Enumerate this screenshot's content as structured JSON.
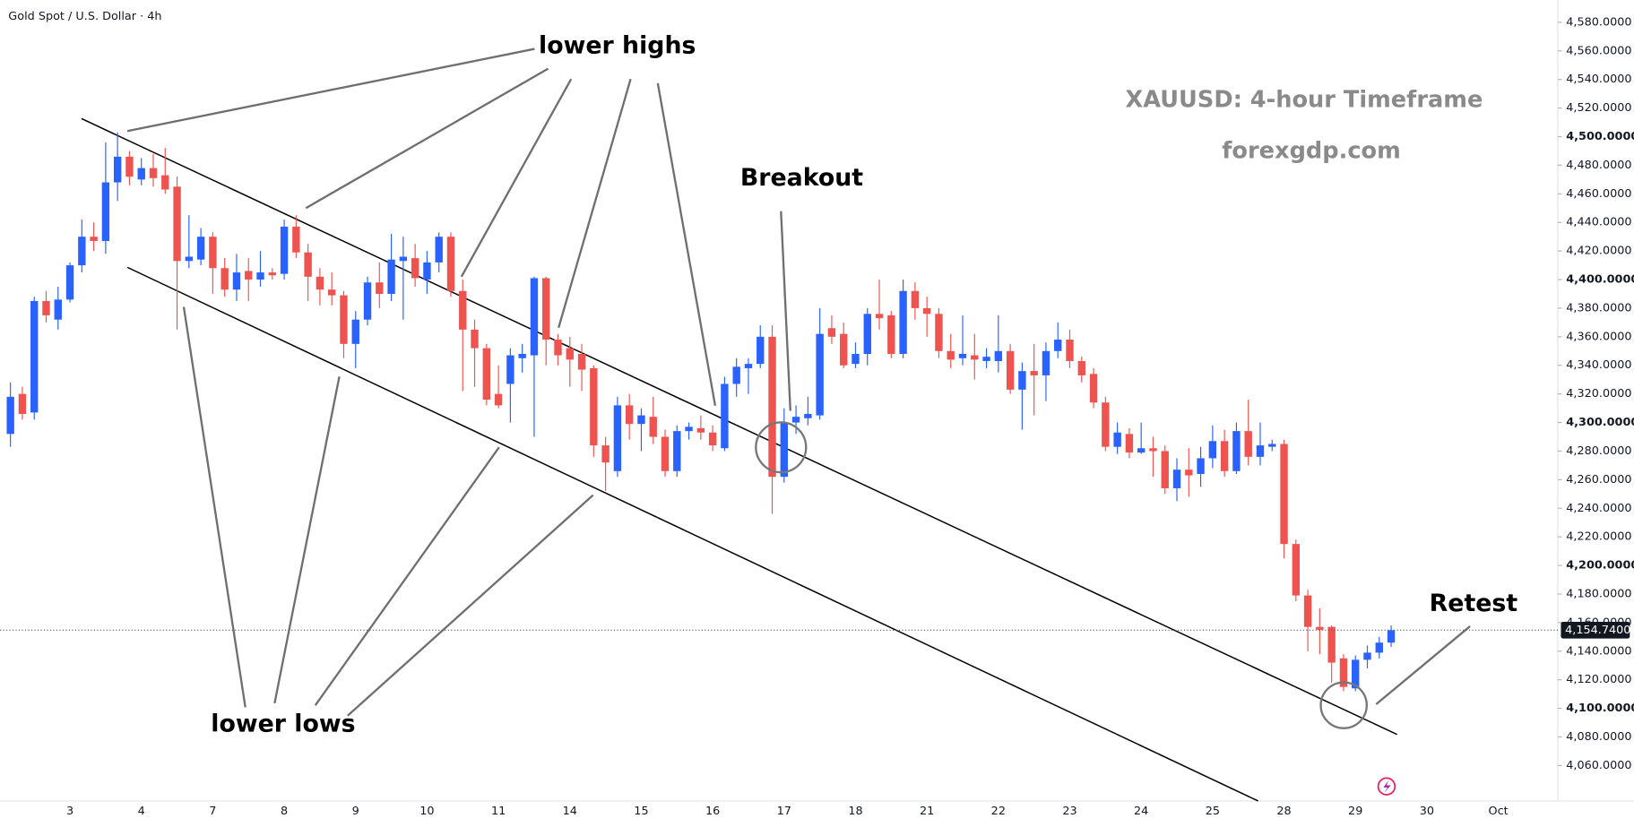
{
  "chart_data": {
    "type": "candlestick",
    "title": "Gold Spot / U.S. Dollar · 4h",
    "caption": "XAUUSD: 4-hour Timeframe",
    "source": "forexgdp.com",
    "annotations": [
      "lower highs",
      "lower lows",
      "Breakout",
      "Retest"
    ],
    "up_color": "#2962ff",
    "down_color": "#ef5350",
    "grid": false,
    "categories": [
      null,
      null,
      null,
      null,
      null,
      "3",
      null,
      null,
      null,
      null,
      null,
      "4",
      null,
      null,
      null,
      null,
      null,
      "7",
      null,
      null,
      null,
      null,
      null,
      "8",
      null,
      null,
      null,
      null,
      null,
      "9",
      null,
      null,
      null,
      null,
      null,
      "10",
      null,
      null,
      null,
      null,
      null,
      "11",
      null,
      null,
      null,
      null,
      null,
      "14",
      null,
      null,
      null,
      null,
      null,
      "15",
      null,
      null,
      null,
      null,
      null,
      "16",
      null,
      null,
      null,
      null,
      null,
      "17",
      null,
      null,
      null,
      null,
      null,
      "18",
      null,
      null,
      null,
      null,
      null,
      "21",
      null,
      null,
      null,
      null,
      null,
      "22",
      null,
      null,
      null,
      null,
      null,
      "23",
      null,
      null,
      null,
      null,
      null,
      "24",
      null,
      null,
      null,
      null,
      null,
      "25",
      null,
      null,
      null,
      null,
      null,
      "28",
      null,
      null,
      null,
      null,
      null,
      "29",
      null,
      null,
      null,
      null,
      null,
      "30",
      null,
      null,
      null,
      null,
      null,
      "Oct",
      null,
      null,
      null,
      null,
      null
    ],
    "open": [
      4292,
      4320,
      4307,
      4385,
      4372,
      4386,
      4410,
      4430,
      4427,
      4468,
      4486,
      4470,
      4478,
      4473,
      4465,
      4413,
      4414,
      4430,
      4408,
      4393,
      4406,
      4400,
      4405,
      4404,
      4437,
      4419,
      4402,
      4393,
      4389,
      4355,
      4372,
      4398,
      4390,
      4413,
      4415,
      4400,
      4412,
      4430,
      4392,
      4365,
      4352,
      4320,
      4327,
      4345,
      4347,
      4401,
      4358,
      4352,
      4348,
      4338,
      4284,
      4266,
      4312,
      4299,
      4304,
      4290,
      4266,
      4294,
      4296,
      4293,
      4282,
      4327,
      4338,
      4341,
      4360,
      4262,
      4300,
      4303,
      4305,
      4366,
      4362,
      4341,
      4348,
      4376,
      4375,
      4348,
      4392,
      4380,
      4376,
      4350,
      4345,
      4347,
      4343,
      4343,
      4350,
      4323,
      4336,
      4333,
      4350,
      4358,
      4343,
      4334,
      4314,
      4283,
      4292,
      4279,
      4282,
      4280,
      4254,
      4267,
      4264,
      4275,
      4287,
      4266,
      4294,
      4276,
      4283,
      4285,
      4215,
      4179,
      4157,
      4157,
      4135,
      4114,
      4134,
      4139,
      4146,
      null,
      null,
      null,
      null,
      null,
      null,
      null,
      null,
      null,
      null,
      null,
      null,
      null,
      null
    ],
    "high": [
      4328,
      4325,
      4388,
      4392,
      4395,
      4412,
      4442,
      4440,
      4496,
      4503,
      4490,
      4485,
      4488,
      4492,
      4472,
      4445,
      4436,
      4433,
      4415,
      4418,
      4415,
      4420,
      4408,
      4442,
      4445,
      4425,
      4408,
      4405,
      4392,
      4378,
      4402,
      4412,
      4432,
      4430,
      4425,
      4420,
      4433,
      4433,
      4400,
      4372,
      4355,
      4340,
      4352,
      4355,
      4402,
      4402,
      4362,
      4360,
      4355,
      4340,
      4290,
      4318,
      4320,
      4310,
      4318,
      4295,
      4298,
      4300,
      4305,
      4298,
      4332,
      4345,
      4345,
      4368,
      4368,
      4310,
      4312,
      4318,
      4380,
      4375,
      4370,
      4356,
      4380,
      4400,
      4378,
      4400,
      4398,
      4388,
      4380,
      4362,
      4375,
      4362,
      4352,
      4375,
      4355,
      4342,
      4355,
      4356,
      4370,
      4365,
      4346,
      4338,
      4318,
      4300,
      4296,
      4300,
      4290,
      4284,
      4275,
      4282,
      4283,
      4298,
      4295,
      4300,
      4316,
      4300,
      4288,
      4288,
      4218,
      4183,
      4170,
      4158,
      4138,
      4137,
      4144,
      4150,
      4158,
      null,
      null,
      null,
      null,
      null,
      null,
      null,
      null,
      null,
      null,
      null,
      null,
      null,
      null
    ],
    "low": [
      4283,
      4302,
      4302,
      4370,
      4365,
      4384,
      4405,
      4420,
      4418,
      4455,
      4466,
      4466,
      4465,
      4460,
      4365,
      4408,
      4410,
      4390,
      4388,
      4385,
      4385,
      4395,
      4400,
      4400,
      4415,
      4385,
      4382,
      4382,
      4345,
      4338,
      4368,
      4380,
      4385,
      4372,
      4395,
      4390,
      4405,
      4388,
      4322,
      4325,
      4312,
      4310,
      4300,
      4335,
      4290,
      4340,
      4340,
      4325,
      4322,
      4276,
      4252,
      4262,
      4288,
      4280,
      4285,
      4262,
      4262,
      4288,
      4288,
      4280,
      4280,
      4318,
      4320,
      4338,
      4236,
      4258,
      4292,
      4298,
      4302,
      4355,
      4338,
      4338,
      4340,
      4365,
      4345,
      4345,
      4372,
      4360,
      4345,
      4338,
      4340,
      4330,
      4338,
      4335,
      4320,
      4295,
      4305,
      4315,
      4345,
      4338,
      4328,
      4310,
      4280,
      4278,
      4275,
      4278,
      4262,
      4250,
      4245,
      4248,
      4255,
      4268,
      4262,
      4264,
      4270,
      4270,
      4280,
      4205,
      4175,
      4140,
      4138,
      4118,
      4112,
      4112,
      4128,
      4135,
      4143,
      null,
      null,
      null,
      null,
      null,
      null,
      null,
      null,
      null,
      null,
      null,
      null,
      null,
      null
    ],
    "close": [
      4318,
      4306,
      4385,
      4375,
      4386,
      4410,
      4430,
      4427,
      4468,
      4486,
      4472,
      4478,
      4471,
      4463,
      4413,
      4416,
      4430,
      4408,
      4393,
      4405,
      4400,
      4405,
      4403,
      4437,
      4419,
      4402,
      4393,
      4389,
      4355,
      4372,
      4398,
      4390,
      4414,
      4416,
      4401,
      4412,
      4430,
      4392,
      4365,
      4352,
      4316,
      4312,
      4347,
      4348,
      4401,
      4358,
      4347,
      4344,
      4337,
      4284,
      4272,
      4312,
      4299,
      4305,
      4290,
      4266,
      4294,
      4297,
      4293,
      4284,
      4327,
      4339,
      4341,
      4360,
      4262,
      4300,
      4304,
      4306,
      4362,
      4360,
      4340,
      4348,
      4376,
      4373,
      4348,
      4392,
      4380,
      4376,
      4350,
      4344,
      4348,
      4344,
      4346,
      4350,
      4323,
      4336,
      4333,
      4350,
      4358,
      4343,
      4333,
      4314,
      4283,
      4293,
      4279,
      4282,
      4280,
      4254,
      4267,
      4263,
      4275,
      4287,
      4266,
      4294,
      4276,
      4284,
      4285,
      4215,
      4179,
      4157,
      4155,
      4132,
      4115,
      4134,
      4139,
      4146,
      4154.74,
      null,
      null,
      null,
      null,
      null,
      null,
      null,
      null,
      null,
      null,
      null,
      null,
      null,
      null
    ],
    "last_price": {
      "value": 4154.74,
      "label": "4,154.7400"
    },
    "ylim": [
      4035.2,
      4595.6
    ],
    "yticks": [
      {
        "value": 4060,
        "label": "4,060.0000"
      },
      {
        "value": 4080,
        "label": "4,080.0000"
      },
      {
        "value": 4100,
        "label": "4,100.0000"
      },
      {
        "value": 4120,
        "label": "4,120.0000"
      },
      {
        "value": 4140,
        "label": "4,140.0000"
      },
      {
        "value": 4160,
        "label": "4,160.0000"
      },
      {
        "value": 4180,
        "label": "4,180.0000"
      },
      {
        "value": 4200,
        "label": "4,200.0000"
      },
      {
        "value": 4220,
        "label": "4,220.0000"
      },
      {
        "value": 4240,
        "label": "4,240.0000"
      },
      {
        "value": 4260,
        "label": "4,260.0000"
      },
      {
        "value": 4280,
        "label": "4,280.0000"
      },
      {
        "value": 4300,
        "label": "4,300.0000"
      },
      {
        "value": 4320,
        "label": "4,320.0000"
      },
      {
        "value": 4340,
        "label": "4,340.0000"
      },
      {
        "value": 4360,
        "label": "4,360.0000"
      },
      {
        "value": 4380,
        "label": "4,380.0000"
      },
      {
        "value": 4400,
        "label": "4,400.0000"
      },
      {
        "value": 4420,
        "label": "4,420.0000"
      },
      {
        "value": 4440,
        "label": "4,440.0000"
      },
      {
        "value": 4460,
        "label": "4,460.0000"
      },
      {
        "value": 4480,
        "label": "4,480.0000"
      },
      {
        "value": 4500,
        "label": "4,500.0000"
      },
      {
        "value": 4520,
        "label": "4,520.0000"
      },
      {
        "value": 4540,
        "label": "4,540.0000"
      },
      {
        "value": 4560,
        "label": "4,560.0000"
      },
      {
        "value": 4580,
        "label": "4,580.0000"
      }
    ]
  }
}
